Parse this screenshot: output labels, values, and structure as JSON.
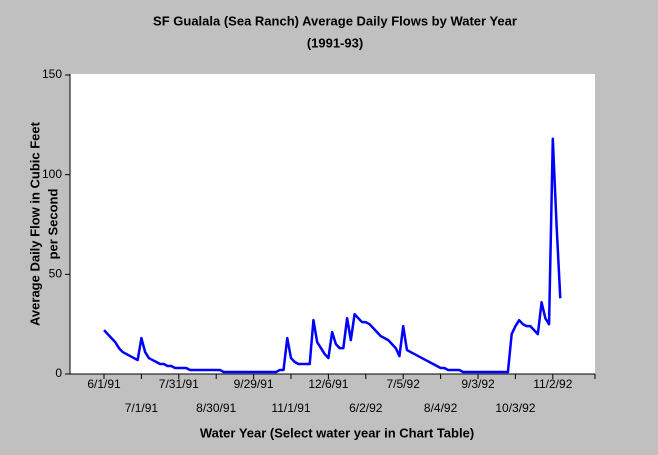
{
  "chart_data": {
    "type": "line",
    "title": "SF Gualala (Sea Ranch) Average Daily Flows by Water Year",
    "subtitle": "(1991-93)",
    "y_label": [
      "Average Daily Flow in Cubic Feet",
      "per Second"
    ],
    "x_label": "Water Year (Select water year in Chart Table)",
    "ylim": [
      0,
      150
    ],
    "yticks": [
      0,
      50,
      100,
      150
    ],
    "grid": false,
    "categories": [
      "6/1/91",
      null,
      null,
      null,
      null,
      null,
      null,
      null,
      null,
      null,
      "7/1/91",
      null,
      null,
      null,
      null,
      null,
      null,
      null,
      null,
      null,
      "7/31/91",
      null,
      null,
      null,
      null,
      null,
      null,
      null,
      null,
      null,
      "8/30/91",
      null,
      null,
      null,
      null,
      null,
      null,
      null,
      null,
      null,
      "9/29/91",
      null,
      null,
      null,
      null,
      null,
      null,
      null,
      null,
      null,
      "11/1/91",
      null,
      null,
      null,
      null,
      null,
      null,
      null,
      null,
      null,
      "12/6/91",
      null,
      null,
      null,
      null,
      null,
      null,
      null,
      null,
      null,
      "6/2/92",
      null,
      null,
      null,
      null,
      null,
      null,
      null,
      null,
      null,
      "7/5/92",
      null,
      null,
      null,
      null,
      null,
      null,
      null,
      null,
      null,
      "8/4/92",
      null,
      null,
      null,
      null,
      null,
      null,
      null,
      null,
      null,
      "9/3/92",
      null,
      null,
      null,
      null,
      null,
      null,
      null,
      null,
      null,
      "10/3/92",
      null,
      null,
      null,
      null,
      null,
      null,
      null,
      null,
      null,
      "11/2/92",
      null,
      null
    ],
    "series": [
      {
        "name": "Average Daily Flow",
        "color": "#0000ff",
        "values": [
          22,
          20,
          18,
          16,
          13,
          11,
          10,
          9,
          8,
          7,
          18,
          11,
          8,
          7,
          6,
          5,
          5,
          4,
          4,
          3,
          3,
          3,
          3,
          2,
          2,
          2,
          2,
          2,
          2,
          2,
          2,
          2,
          1,
          1,
          1,
          1,
          1,
          1,
          1,
          1,
          1,
          1,
          1,
          1,
          1,
          1,
          1,
          2,
          2,
          18,
          8,
          6,
          5,
          5,
          5,
          5,
          27,
          16,
          13,
          10,
          8,
          21,
          15,
          13,
          13,
          28,
          17,
          30,
          28,
          26,
          26,
          25,
          23,
          21,
          19,
          18,
          17,
          15,
          13,
          9,
          24,
          12,
          11,
          10,
          9,
          8,
          7,
          6,
          5,
          4,
          3,
          3,
          2,
          2,
          2,
          2,
          1,
          1,
          1,
          1,
          1,
          1,
          1,
          1,
          1,
          1,
          1,
          1,
          1,
          20,
          24,
          27,
          25,
          24,
          24,
          22,
          20,
          36,
          28,
          25,
          118,
          75,
          38
        ]
      }
    ]
  }
}
